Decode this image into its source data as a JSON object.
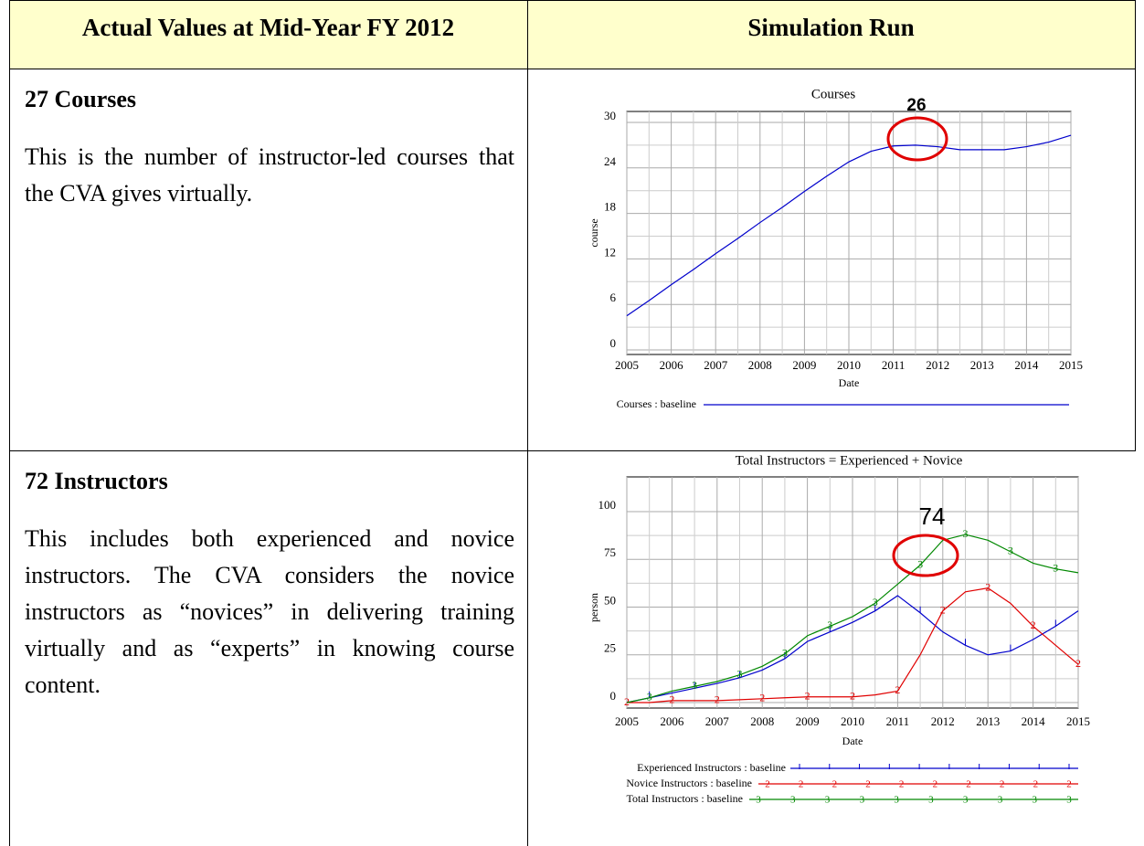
{
  "table": {
    "headers": [
      "Actual Values at Mid-Year FY 2012",
      "Simulation Run"
    ],
    "rows": [
      {
        "heading": "27 Courses",
        "text": "This is the number of instructor-led courses that the CVA gives virtually."
      },
      {
        "heading": "72 Instructors",
        "text": "This includes both experienced and novice instructors. The CVA considers the novice instructors as “novices” in delivering training virtually and as “experts” in knowing course content."
      }
    ]
  },
  "chart_data": [
    {
      "type": "line",
      "title": "Courses",
      "x_label": "Date",
      "y_label": "course",
      "annotation": "26",
      "x": [
        2005,
        2005.5,
        2006,
        2006.5,
        2007,
        2007.5,
        2008,
        2008.5,
        2009,
        2009.5,
        2010,
        2010.5,
        2011,
        2011.5,
        2012,
        2012.5,
        2013,
        2013.5,
        2014,
        2014.5,
        2015
      ],
      "series": [
        {
          "name": "Courses : baseline",
          "color": "#0000cc",
          "values": [
            4.5,
            6.5,
            8.6,
            10.6,
            12.7,
            14.7,
            16.8,
            18.8,
            20.9,
            22.9,
            24.8,
            26.2,
            26.9,
            27,
            26.8,
            26.4,
            26.4,
            26.4,
            26.8,
            27.4,
            28.3
          ]
        }
      ],
      "xlim": [
        2005,
        2015
      ],
      "ylim": [
        0,
        30
      ],
      "xticks": [
        2005,
        2006,
        2007,
        2008,
        2009,
        2010,
        2011,
        2012,
        2013,
        2014,
        2015
      ],
      "yticks": [
        0,
        6,
        12,
        18,
        24,
        30
      ],
      "grid": true
    },
    {
      "type": "line",
      "title": "Total Instructors = Experienced + Novice",
      "x_label": "Date",
      "y_label": "person",
      "annotation": "74",
      "x": [
        2005,
        2005.5,
        2006,
        2006.5,
        2007,
        2007.5,
        2008,
        2008.5,
        2009,
        2009.5,
        2010,
        2010.5,
        2011,
        2011.5,
        2012,
        2012.5,
        2013,
        2013.5,
        2014,
        2014.5,
        2015
      ],
      "series": [
        {
          "name": "Experienced Instructors : baseline",
          "color": "#0000cc",
          "values": [
            0,
            2.5,
            5,
            7.5,
            10,
            13,
            17,
            23,
            32,
            37,
            42,
            48,
            56,
            47,
            37,
            30,
            25,
            27,
            33,
            40,
            48
          ]
        },
        {
          "name": "Novice Instructors : baseline",
          "color": "#e00000",
          "marker": "2",
          "values": [
            0,
            0,
            1,
            1,
            1,
            1.5,
            2,
            2.5,
            3,
            3,
            3,
            4,
            6,
            25,
            48,
            58,
            60,
            52,
            40,
            30,
            20
          ]
        },
        {
          "name": "Total Instructors : baseline",
          "color": "#008800",
          "marker": "3",
          "values": [
            0,
            2.5,
            6,
            8.5,
            11,
            14.5,
            19,
            25.5,
            35,
            40,
            45,
            52,
            62,
            72,
            85,
            88,
            85,
            79,
            73,
            70,
            68
          ]
        }
      ],
      "xlim": [
        2005,
        2015
      ],
      "ylim": [
        0,
        100
      ],
      "xticks": [
        2005,
        2006,
        2007,
        2008,
        2009,
        2010,
        2011,
        2012,
        2013,
        2014,
        2015
      ],
      "yticks": [
        0,
        25,
        50,
        75,
        100
      ],
      "grid": true
    }
  ]
}
